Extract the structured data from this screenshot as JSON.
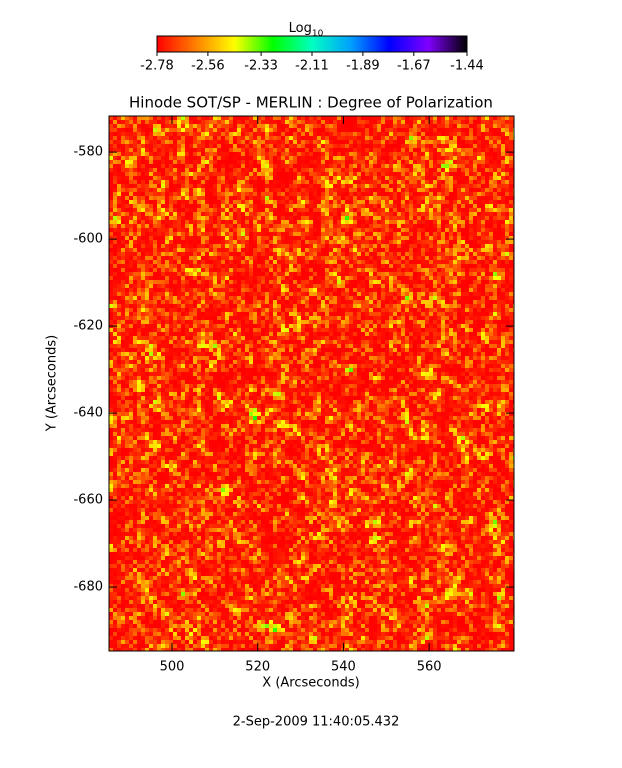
{
  "chart_data": {
    "type": "heatmap",
    "title": "Hinode SOT/SP - MERLIN : Degree of Polarization",
    "x_label": "X (Arcseconds)",
    "y_label": "Y (Arcseconds)",
    "footer": "2-Sep-2009 11:40:05.432",
    "colorbar": {
      "label": "Log",
      "label_subscript": "10",
      "lim": [
        -2.78,
        -1.44
      ],
      "ticks": [
        -2.78,
        -2.56,
        -2.33,
        -2.11,
        -1.89,
        -1.67,
        -1.44
      ],
      "colormap": [
        "#ff0000",
        "#ff8000",
        "#ffff00",
        "#00ff00",
        "#00ffc0",
        "#00a0ff",
        "#0000ff",
        "#8000ff",
        "#000000"
      ]
    },
    "xlim": [
      485.3,
      579.8
    ],
    "xticks": [
      500,
      520,
      540,
      560
    ],
    "ylim": [
      -694.7,
      -571.7
    ],
    "yticks": [
      -580,
      -600,
      -620,
      -640,
      -660,
      -680
    ]
  }
}
